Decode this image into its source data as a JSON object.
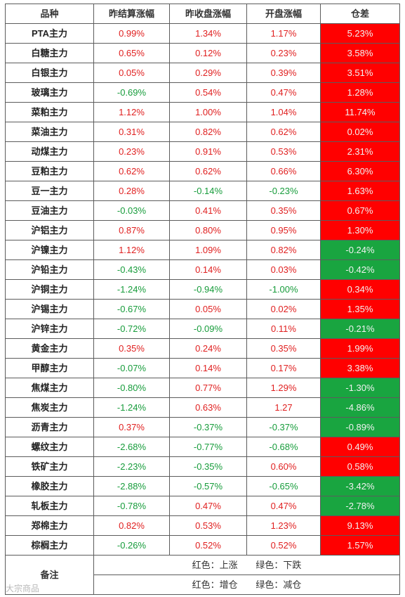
{
  "headers": [
    "品种",
    "昨结算涨幅",
    "昨收盘涨幅",
    "开盘涨幅",
    "仓差"
  ],
  "rows": [
    {
      "name": "PTA主力",
      "settle": "0.99%",
      "close": "1.34%",
      "open": "1.17%",
      "pos": "5.23%",
      "pos_color": "red"
    },
    {
      "name": "白糖主力",
      "settle": "0.65%",
      "close": "0.12%",
      "open": "0.23%",
      "pos": "3.58%",
      "pos_color": "red"
    },
    {
      "name": "白银主力",
      "settle": "0.05%",
      "close": "0.29%",
      "open": "0.39%",
      "pos": "3.51%",
      "pos_color": "red"
    },
    {
      "name": "玻璃主力",
      "settle": "-0.69%",
      "close": "0.54%",
      "open": "0.47%",
      "pos": "1.28%",
      "pos_color": "red"
    },
    {
      "name": "菜粕主力",
      "settle": "1.12%",
      "close": "1.00%",
      "open": "1.04%",
      "pos": "11.74%",
      "pos_color": "red"
    },
    {
      "name": "菜油主力",
      "settle": "0.31%",
      "close": "0.82%",
      "open": "0.62%",
      "pos": "0.02%",
      "pos_color": "red"
    },
    {
      "name": "动煤主力",
      "settle": "0.23%",
      "close": "0.91%",
      "open": "0.53%",
      "pos": "2.31%",
      "pos_color": "red"
    },
    {
      "name": "豆粕主力",
      "settle": "0.62%",
      "close": "0.62%",
      "open": "0.66%",
      "pos": "6.30%",
      "pos_color": "red"
    },
    {
      "name": "豆一主力",
      "settle": "0.28%",
      "close": "-0.14%",
      "open": "-0.23%",
      "pos": "1.63%",
      "pos_color": "red"
    },
    {
      "name": "豆油主力",
      "settle": "-0.03%",
      "close": "0.41%",
      "open": "0.35%",
      "pos": "0.67%",
      "pos_color": "red"
    },
    {
      "name": "沪铝主力",
      "settle": "0.87%",
      "close": "0.80%",
      "open": "0.95%",
      "pos": "1.30%",
      "pos_color": "red"
    },
    {
      "name": "沪镍主力",
      "settle": "1.12%",
      "close": "1.09%",
      "open": "0.82%",
      "pos": "-0.24%",
      "pos_color": "green"
    },
    {
      "name": "沪铅主力",
      "settle": "-0.43%",
      "close": "0.14%",
      "open": "0.03%",
      "pos": "-0.42%",
      "pos_color": "green"
    },
    {
      "name": "沪铜主力",
      "settle": "-1.24%",
      "close": "-0.94%",
      "open": "-1.00%",
      "pos": "0.34%",
      "pos_color": "red"
    },
    {
      "name": "沪锡主力",
      "settle": "-0.67%",
      "close": "0.05%",
      "open": "0.02%",
      "pos": "1.35%",
      "pos_color": "red"
    },
    {
      "name": "沪锌主力",
      "settle": "-0.72%",
      "close": "-0.09%",
      "open": "0.11%",
      "pos": "-0.21%",
      "pos_color": "green"
    },
    {
      "name": "黄金主力",
      "settle": "0.35%",
      "close": "0.24%",
      "open": "0.35%",
      "pos": "1.99%",
      "pos_color": "red"
    },
    {
      "name": "甲醇主力",
      "settle": "-0.07%",
      "close": "0.14%",
      "open": "0.17%",
      "pos": "3.38%",
      "pos_color": "red"
    },
    {
      "name": "焦煤主力",
      "settle": "-0.80%",
      "close": "0.77%",
      "open": "1.29%",
      "pos": "-1.30%",
      "pos_color": "green"
    },
    {
      "name": "焦炭主力",
      "settle": "-1.24%",
      "close": "0.63%",
      "open": "1.27",
      "pos": "-4.86%",
      "pos_color": "green"
    },
    {
      "name": "沥青主力",
      "settle": "0.37%",
      "close": "-0.37%",
      "open": "-0.37%",
      "pos": "-0.89%",
      "pos_color": "green"
    },
    {
      "name": "螺纹主力",
      "settle": "-2.68%",
      "close": "-0.77%",
      "open": "-0.68%",
      "pos": "0.49%",
      "pos_color": "red"
    },
    {
      "name": "铁矿主力",
      "settle": "-2.23%",
      "close": "-0.35%",
      "open": "0.60%",
      "pos": "0.58%",
      "pos_color": "red"
    },
    {
      "name": "橡胶主力",
      "settle": "-2.88%",
      "close": "-0.57%",
      "open": "-0.65%",
      "pos": "-3.42%",
      "pos_color": "green"
    },
    {
      "name": "轧板主力",
      "settle": "-0.78%",
      "close": "0.47%",
      "open": "0.47%",
      "pos": "-2.78%",
      "pos_color": "green"
    },
    {
      "name": "郑棉主力",
      "settle": "0.82%",
      "close": "0.53%",
      "open": "1.23%",
      "pos": "9.13%",
      "pos_color": "red"
    },
    {
      "name": "棕榈主力",
      "settle": "-0.26%",
      "close": "0.52%",
      "open": "0.52%",
      "pos": "1.57%",
      "pos_color": "red"
    }
  ],
  "notes": {
    "label": "备注",
    "line1": [
      "红色：上涨",
      "绿色：下跌"
    ],
    "line2": [
      "红色：增仓",
      "绿色：减仓"
    ]
  },
  "colors": {
    "up_text": "#e02020",
    "down_text": "#179c3b",
    "pos_red": "#ff0000",
    "pos_green": "#19a540"
  },
  "watermark": "大宗商品"
}
